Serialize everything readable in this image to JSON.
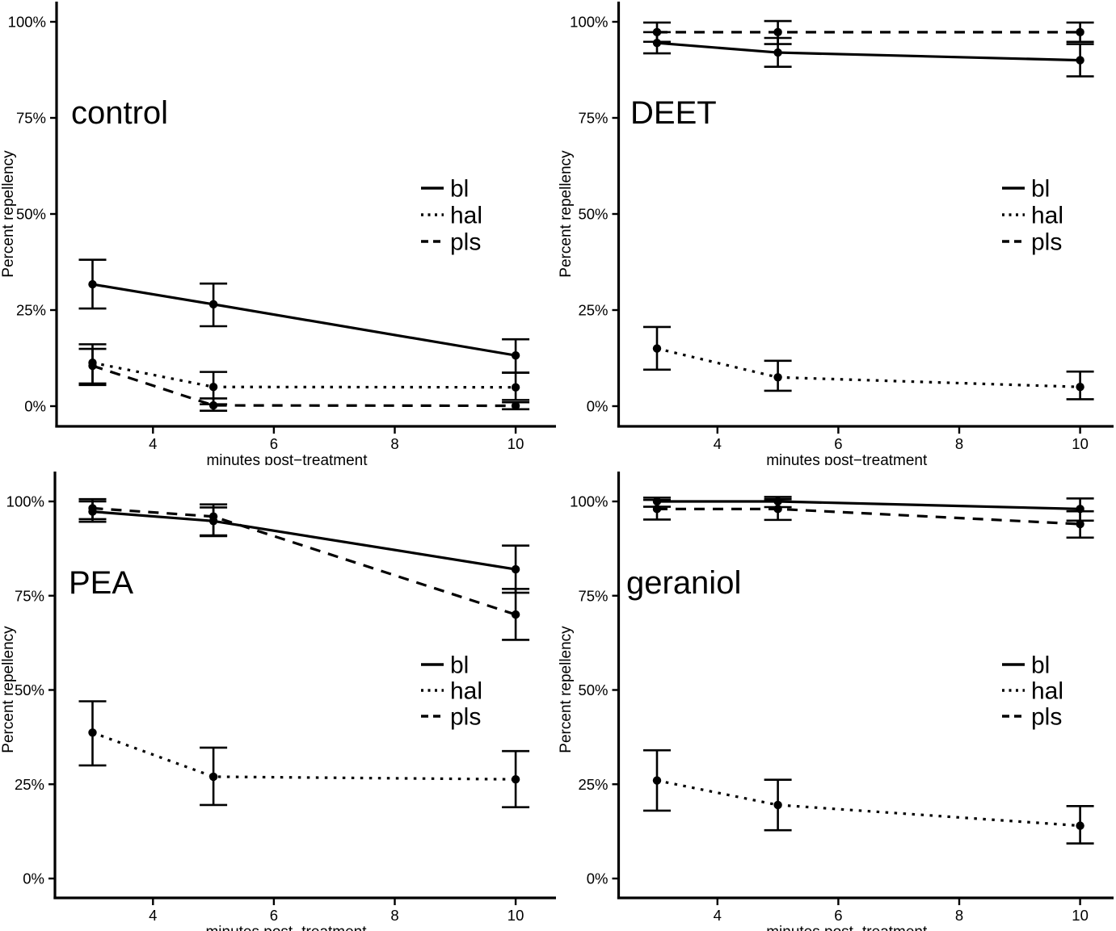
{
  "figure": {
    "xlabel": "minutes post−treatment",
    "ylabel": "Percent repellency",
    "x_tick_values": [
      4,
      6,
      8,
      10
    ],
    "y_ticks": [
      {
        "value": 0,
        "label": "0%"
      },
      {
        "value": 25,
        "label": "25%"
      },
      {
        "value": 50,
        "label": "50%"
      },
      {
        "value": 75,
        "label": "75%"
      },
      {
        "value": 100,
        "label": "100%"
      }
    ],
    "legend_entries": [
      "bl",
      "hal",
      "pls"
    ],
    "line_color": "#000000",
    "background_color": "#ffffff"
  },
  "chart_data": [
    {
      "type": "line",
      "title": "control",
      "xlabel": "minutes post−treatment",
      "ylabel": "Percent repellency",
      "x": [
        3,
        5,
        10
      ],
      "xlim": [
        2.4,
        10.7
      ],
      "ylim": [
        0,
        100
      ],
      "x_ticks": [
        4,
        6,
        8,
        10
      ],
      "y_ticks": [
        {
          "value": 0,
          "label": "0%"
        },
        {
          "value": 25,
          "label": "25%"
        },
        {
          "value": 50,
          "label": "50%"
        },
        {
          "value": 75,
          "label": "75%"
        },
        {
          "value": 100,
          "label": "100%"
        }
      ],
      "legend_position": "right-middle",
      "series": [
        {
          "name": "bl",
          "style": "solid",
          "values": [
            31.7,
            26.5,
            13.2
          ],
          "err_low": [
            25.4,
            20.8,
            8.7
          ],
          "err_high": [
            38.1,
            31.9,
            17.4
          ]
        },
        {
          "name": "hal",
          "style": "dotted",
          "values": [
            11.3,
            5.0,
            4.9
          ],
          "err_low": [
            5.9,
            0.5,
            1.6
          ],
          "err_high": [
            16.1,
            8.9,
            8.7
          ]
        },
        {
          "name": "pls",
          "style": "dashed",
          "values": [
            10.5,
            0.2,
            0.1
          ],
          "err_low": [
            5.5,
            -1.2,
            -0.8
          ],
          "err_high": [
            14.9,
            2.0,
            1.0
          ]
        }
      ]
    },
    {
      "type": "line",
      "title": "DEET",
      "xlabel": "minutes post−treatment",
      "ylabel": "Percent repellency",
      "x": [
        3,
        5,
        10
      ],
      "xlim": [
        2.4,
        10.7
      ],
      "ylim": [
        0,
        100
      ],
      "x_ticks": [
        4,
        6,
        8,
        10
      ],
      "y_ticks": [
        {
          "value": 0,
          "label": "0%"
        },
        {
          "value": 25,
          "label": "25%"
        },
        {
          "value": 50,
          "label": "50%"
        },
        {
          "value": 75,
          "label": "75%"
        },
        {
          "value": 100,
          "label": "100%"
        }
      ],
      "legend_position": "right-middle",
      "series": [
        {
          "name": "bl",
          "style": "solid",
          "values": [
            94.5,
            92.0,
            90.0
          ],
          "err_low": [
            91.8,
            88.3,
            85.8
          ],
          "err_high": [
            97.3,
            95.8,
            94.2
          ]
        },
        {
          "name": "hal",
          "style": "dotted",
          "values": [
            15.0,
            7.5,
            5.0
          ],
          "err_low": [
            9.5,
            4.0,
            1.8
          ],
          "err_high": [
            20.6,
            11.8,
            9.0
          ]
        },
        {
          "name": "pls",
          "style": "dashed",
          "values": [
            97.3,
            97.3,
            97.3
          ],
          "err_low": [
            94.8,
            94.2,
            94.8
          ],
          "err_high": [
            99.8,
            100.2,
            99.8
          ]
        }
      ]
    },
    {
      "type": "line",
      "title": "PEA",
      "xlabel": "minutes post−treatment",
      "ylabel": "Percent repellency",
      "x": [
        3,
        5,
        10
      ],
      "xlim": [
        2.4,
        10.7
      ],
      "ylim": [
        0,
        100
      ],
      "x_ticks": [
        4,
        6,
        8,
        10
      ],
      "y_ticks": [
        {
          "value": 0,
          "label": "0%"
        },
        {
          "value": 25,
          "label": "25%"
        },
        {
          "value": 50,
          "label": "50%"
        },
        {
          "value": 75,
          "label": "75%"
        },
        {
          "value": 100,
          "label": "100%"
        }
      ],
      "legend_position": "right-middle",
      "series": [
        {
          "name": "bl",
          "style": "solid",
          "values": [
            97.3,
            94.8,
            82.0
          ],
          "err_low": [
            94.6,
            91.0,
            75.8
          ],
          "err_high": [
            100.0,
            98.4,
            88.3
          ]
        },
        {
          "name": "hal",
          "style": "dotted",
          "values": [
            38.7,
            27.0,
            26.3
          ],
          "err_low": [
            30.0,
            19.5,
            18.9
          ],
          "err_high": [
            47.0,
            34.7,
            33.8
          ]
        },
        {
          "name": "pls",
          "style": "dashed",
          "values": [
            98.2,
            96.0,
            70.0
          ],
          "err_low": [
            95.3,
            90.8,
            63.3
          ],
          "err_high": [
            100.6,
            99.2,
            76.8
          ]
        }
      ]
    },
    {
      "type": "line",
      "title": "geraniol",
      "xlabel": "minutes post−treatment",
      "ylabel": "Percent repellency",
      "x": [
        3,
        5,
        10
      ],
      "xlim": [
        2.4,
        10.7
      ],
      "ylim": [
        0,
        100
      ],
      "x_ticks": [
        4,
        6,
        8,
        10
      ],
      "y_ticks": [
        {
          "value": 0,
          "label": "0%"
        },
        {
          "value": 25,
          "label": "25%"
        },
        {
          "value": 50,
          "label": "50%"
        },
        {
          "value": 75,
          "label": "75%"
        },
        {
          "value": 100,
          "label": "100%"
        }
      ],
      "legend_position": "right-middle",
      "series": [
        {
          "name": "bl",
          "style": "solid",
          "values": [
            100.0,
            100.0,
            98.0
          ],
          "err_low": [
            98.6,
            98.5,
            94.9
          ],
          "err_high": [
            101.0,
            101.2,
            100.8
          ]
        },
        {
          "name": "hal",
          "style": "dotted",
          "values": [
            26.0,
            19.5,
            14.0
          ],
          "err_low": [
            18.0,
            12.8,
            9.3
          ],
          "err_high": [
            34.0,
            26.2,
            19.2
          ]
        },
        {
          "name": "pls",
          "style": "dashed",
          "values": [
            98.0,
            98.0,
            94.0
          ],
          "err_low": [
            95.2,
            95.1,
            90.4
          ],
          "err_high": [
            100.4,
            100.6,
            97.4
          ]
        }
      ]
    }
  ]
}
